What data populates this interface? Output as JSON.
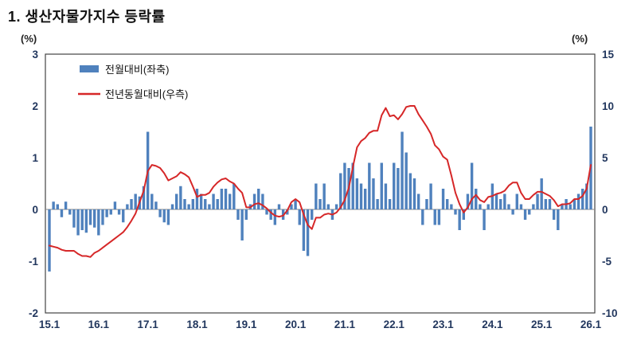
{
  "title": "1. 생산자물가지수 등락률",
  "chart_data": {
    "type": "bar",
    "subtype": "bar+line combo, monthly from 2015.1 to 2026.1",
    "left_axis": {
      "unit": "(%)",
      "min": -2,
      "max": 3,
      "ticks": [
        3,
        2,
        1,
        0,
        -1,
        -2
      ]
    },
    "right_axis": {
      "unit": "(%)",
      "min": -10,
      "max": 15,
      "ticks": [
        15,
        10,
        5,
        0,
        -5,
        -10
      ]
    },
    "x_ticks": [
      "15.1",
      "16.1",
      "17.1",
      "18.1",
      "19.1",
      "20.1",
      "21.1",
      "22.1",
      "23.1",
      "24.1",
      "25.1",
      "26.1"
    ],
    "legend": [
      {
        "label": "전월대비(좌축)",
        "type": "bar",
        "color": "#4f81bd"
      },
      {
        "label": "전년동월대비(우측)",
        "type": "line",
        "color": "#d62728"
      }
    ],
    "series": [
      {
        "name": "전월대비(좌축)",
        "axis": "left",
        "type": "bar",
        "color": "#4f81bd",
        "values": [
          -1.2,
          0.15,
          0.1,
          -0.15,
          0.15,
          -0.1,
          -0.35,
          -0.5,
          -0.4,
          -0.45,
          -0.3,
          -0.35,
          -0.5,
          -0.3,
          -0.15,
          -0.1,
          0.15,
          -0.1,
          -0.25,
          0.1,
          0.2,
          0.3,
          0.25,
          0.45,
          1.5,
          0.3,
          0.15,
          -0.15,
          -0.25,
          -0.3,
          0.1,
          0.3,
          0.45,
          0.2,
          0.1,
          0.2,
          0.4,
          0.3,
          0.2,
          0.1,
          0.3,
          0.2,
          0.4,
          0.4,
          0.3,
          0.5,
          -0.2,
          -0.6,
          -0.2,
          0.1,
          0.3,
          0.4,
          0.3,
          -0.1,
          -0.2,
          -0.3,
          0.1,
          -0.2,
          -0.1,
          0.1,
          0.2,
          -0.3,
          -0.8,
          -0.9,
          -0.2,
          0.5,
          0.2,
          0.5,
          0.1,
          -0.2,
          0.1,
          0.7,
          0.9,
          0.8,
          0.9,
          0.6,
          0.5,
          0.4,
          0.9,
          0.6,
          0.2,
          0.9,
          0.5,
          0.2,
          0.9,
          0.8,
          1.5,
          1.1,
          0.7,
          0.6,
          0.3,
          -0.3,
          0.2,
          0.5,
          -0.3,
          -0.3,
          0.4,
          0.2,
          0.1,
          -0.1,
          -0.4,
          -0.2,
          0.3,
          0.9,
          0.4,
          0.1,
          -0.4,
          0.1,
          0.5,
          0.3,
          0.2,
          0.3,
          0.1,
          -0.1,
          0.3,
          0.1,
          -0.2,
          -0.1,
          0.1,
          0.3,
          0.6,
          0.2,
          0.2,
          -0.2,
          -0.4,
          0.1,
          0.2,
          0.1,
          0.2,
          0.3,
          0.4,
          0.5,
          1.6
        ]
      },
      {
        "name": "전년동월대비(우측)",
        "axis": "right",
        "type": "line",
        "color": "#d62728",
        "values": [
          -3.5,
          -3.6,
          -3.7,
          -3.9,
          -4.0,
          -4.0,
          -4.0,
          -4.3,
          -4.5,
          -4.5,
          -4.6,
          -4.2,
          -4.0,
          -3.7,
          -3.4,
          -3.1,
          -2.8,
          -2.5,
          -2.2,
          -1.7,
          -1.1,
          -0.4,
          0.7,
          1.8,
          3.7,
          4.3,
          4.2,
          4.0,
          3.5,
          2.8,
          3.0,
          3.2,
          3.6,
          3.4,
          3.1,
          2.2,
          1.2,
          1.4,
          1.4,
          1.6,
          2.2,
          2.6,
          2.9,
          3.0,
          2.7,
          2.5,
          2.0,
          1.6,
          0.2,
          0.2,
          0.5,
          0.6,
          0.4,
          0.1,
          -0.3,
          -0.6,
          -0.7,
          -0.6,
          -0.1,
          0.7,
          1.0,
          0.7,
          -0.5,
          -1.5,
          -1.9,
          -0.8,
          -0.8,
          -0.5,
          -0.4,
          -0.5,
          -0.3,
          0.2,
          0.9,
          2.1,
          4.1,
          6.0,
          6.6,
          6.9,
          7.4,
          7.6,
          7.6,
          9.1,
          9.8,
          9.0,
          9.1,
          8.7,
          9.2,
          9.9,
          10.0,
          10.0,
          9.2,
          8.6,
          8.0,
          7.3,
          6.2,
          5.8,
          5.1,
          4.8,
          3.3,
          1.6,
          0.5,
          -0.3,
          0.2,
          1.0,
          1.4,
          0.9,
          0.7,
          1.2,
          1.3,
          1.5,
          1.6,
          1.8,
          2.3,
          2.6,
          2.6,
          1.6,
          1.0,
          1.0,
          1.4,
          1.7,
          1.7,
          1.5,
          1.3,
          0.9,
          0.3,
          0.5,
          0.5,
          0.6,
          1.0,
          1.0,
          1.3,
          2.0,
          4.3
        ]
      }
    ]
  }
}
